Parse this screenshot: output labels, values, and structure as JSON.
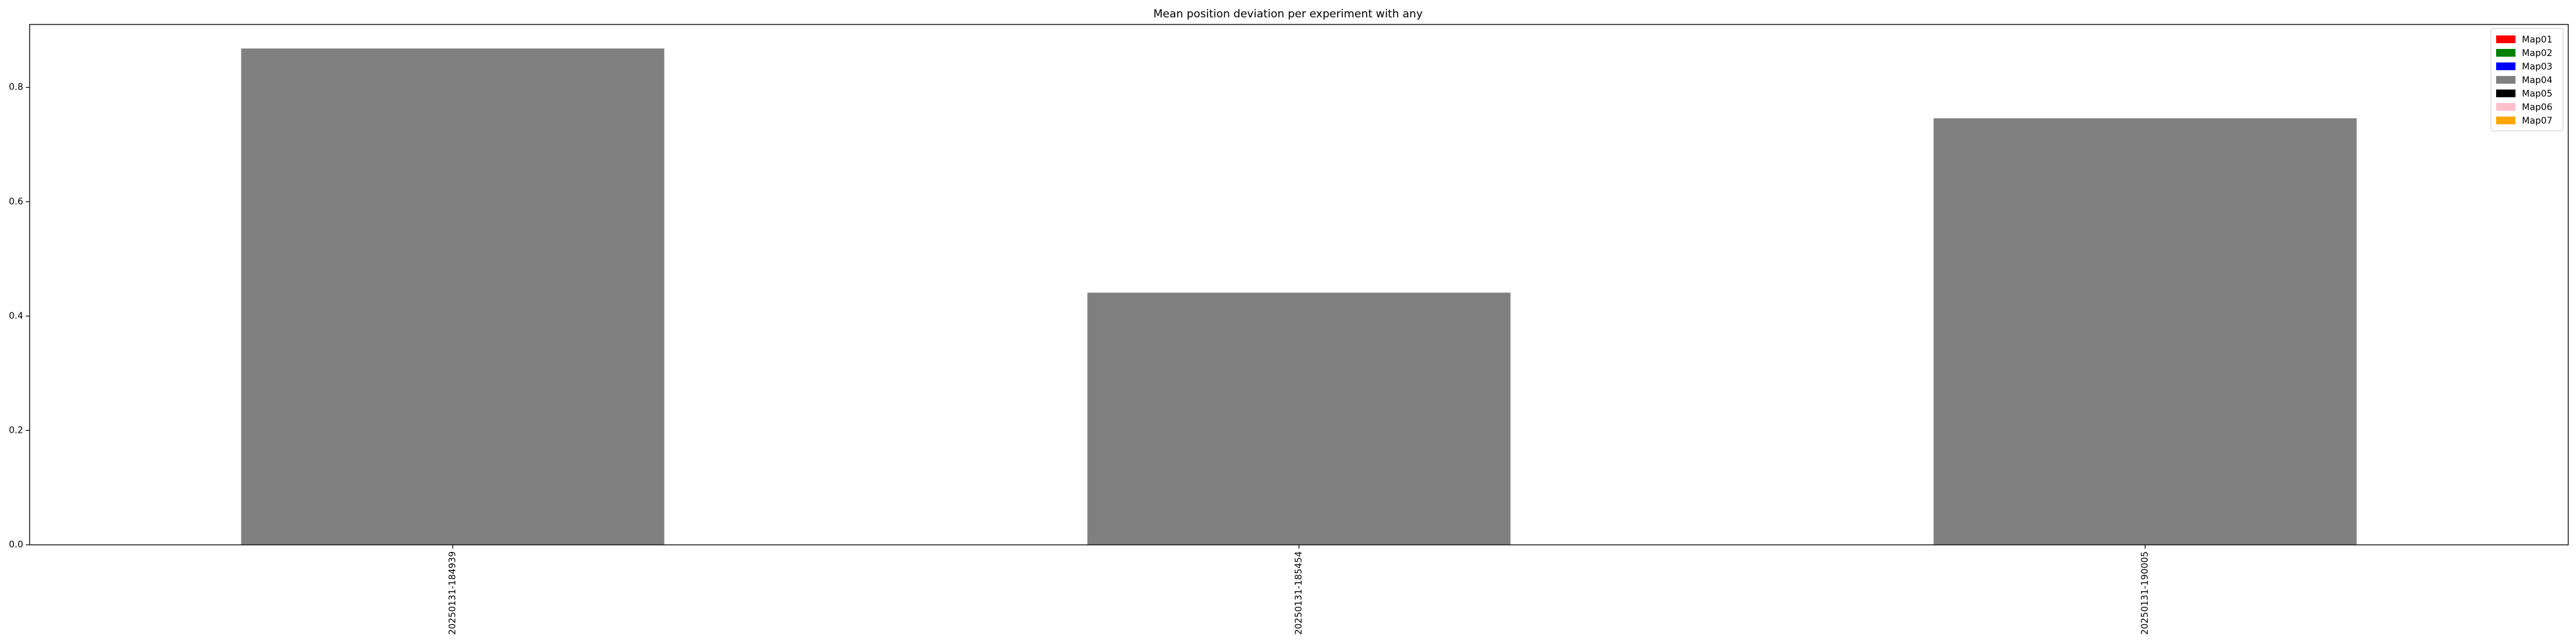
{
  "chart_data": {
    "type": "bar",
    "title": "Mean position deviation per experiment with any",
    "xlabel": "",
    "ylabel": "",
    "categories": [
      "20250131-184939",
      "20250131-185454",
      "20250131-190005"
    ],
    "values": [
      0.868,
      0.441,
      0.746
    ],
    "bar_color": "#808080",
    "ylim": [
      0,
      0.91
    ],
    "yticks": [
      0.0,
      0.2,
      0.4,
      0.6,
      0.8
    ],
    "ytick_labels": [
      "0.0",
      "0.2",
      "0.4",
      "0.6",
      "0.8"
    ],
    "grid": false,
    "legend": {
      "placement": "top-right",
      "entries": [
        {
          "label": "Map01",
          "color": "#ff0000"
        },
        {
          "label": "Map02",
          "color": "#008000"
        },
        {
          "label": "Map03",
          "color": "#0000ff"
        },
        {
          "label": "Map04",
          "color": "#808080"
        },
        {
          "label": "Map05",
          "color": "#000000"
        },
        {
          "label": "Map06",
          "color": "#ffc0cb"
        },
        {
          "label": "Map07",
          "color": "#ffa500"
        }
      ]
    }
  }
}
